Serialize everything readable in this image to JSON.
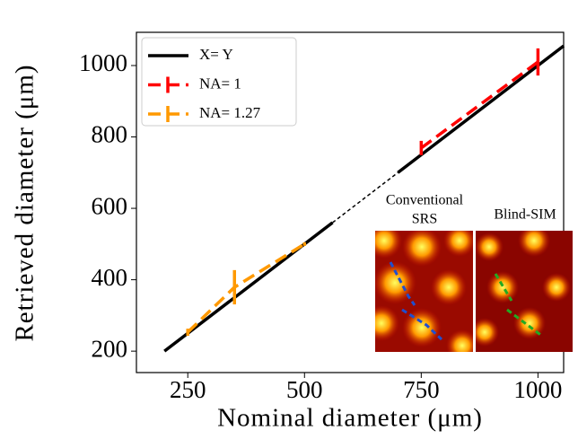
{
  "chart_data": {
    "type": "line",
    "xlabel": "Nominal diameter (μm)",
    "ylabel": "Retrieved diameter (μm)",
    "xlim": [
      140,
      1055
    ],
    "ylim": [
      140,
      1093
    ],
    "xticks": [
      250,
      500,
      750,
      1000
    ],
    "yticks": [
      200,
      400,
      600,
      800,
      1000
    ],
    "legend": "upper left",
    "series": [
      {
        "name": "X= Y",
        "color": "#000000",
        "x": [
          200,
          560,
          700,
          1055
        ],
        "values": [
          200,
          560,
          700,
          1055
        ]
      },
      {
        "name": "NA= 1",
        "color": "#ff0000",
        "x": [
          750,
          1000
        ],
        "values": [
          769,
          1010
        ],
        "errors": [
          20,
          38
        ]
      },
      {
        "name": "NA= 1.27",
        "color": "#ff9900",
        "x": [
          250,
          350,
          500
        ],
        "values": [
          253,
          379,
          500
        ],
        "errors": [
          10,
          48,
          5
        ]
      }
    ],
    "inset_labels": [
      "Conventional",
      "SRS",
      "Blind-SIM"
    ]
  }
}
